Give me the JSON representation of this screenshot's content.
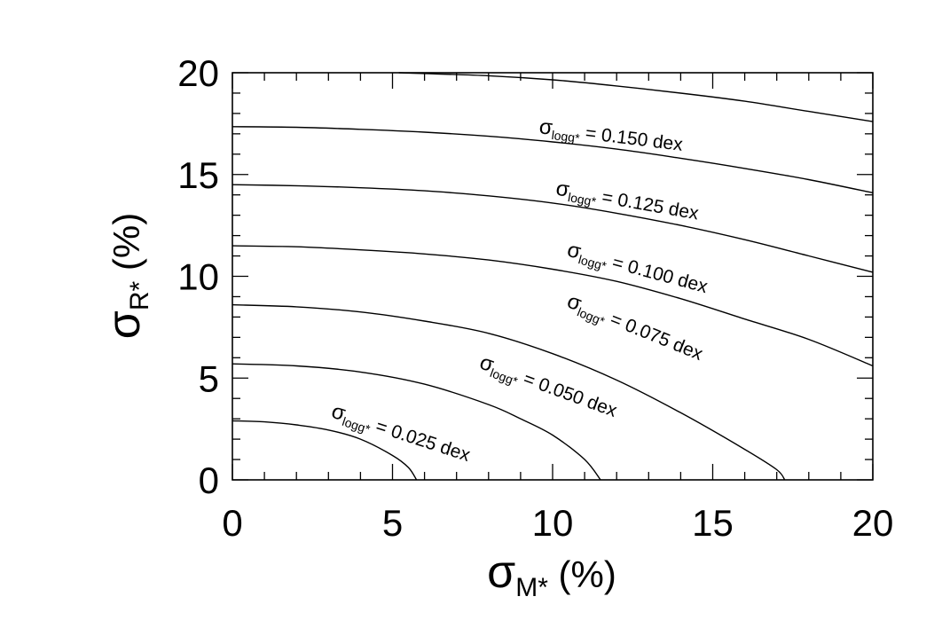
{
  "chart_data": {
    "type": "line",
    "title": "",
    "xlabel": {
      "symbol": "σ",
      "sub": "M*",
      "unit": "(%)"
    },
    "ylabel": {
      "symbol": "σ",
      "sub": "R*",
      "unit": "(%)"
    },
    "xlim": [
      0,
      20
    ],
    "ylim": [
      0,
      20
    ],
    "x_ticks": [
      "0",
      "5",
      "10",
      "15",
      "20"
    ],
    "y_ticks": [
      "0",
      "5",
      "10",
      "15",
      "20"
    ],
    "x_tick_values": [
      0,
      5,
      10,
      15,
      20
    ],
    "y_tick_values": [
      0,
      5,
      10,
      15,
      20
    ],
    "minor_step": 1,
    "grid": false,
    "legend": "none",
    "line_color": "#000000",
    "series": [
      {
        "label": {
          "symbol": "σ",
          "sub": "logg*",
          "text": "= 0.025 dex"
        },
        "logg_sigma": 0.025,
        "label_anchor": [
          5.2,
          2.0
        ],
        "label_angle": 18,
        "points": [
          [
            0,
            2.9
          ],
          [
            1,
            2.85
          ],
          [
            2,
            2.7
          ],
          [
            3,
            2.45
          ],
          [
            4,
            2.0
          ],
          [
            5,
            1.2
          ],
          [
            5.5,
            0.6
          ],
          [
            5.75,
            0
          ]
        ]
      },
      {
        "label": {
          "symbol": "σ",
          "sub": "logg*",
          "text": "= 0.050 dex"
        },
        "logg_sigma": 0.05,
        "label_anchor": [
          9.8,
          4.3
        ],
        "label_angle": 20,
        "points": [
          [
            0,
            5.7
          ],
          [
            2,
            5.6
          ],
          [
            4,
            5.3
          ],
          [
            6,
            4.7
          ],
          [
            8,
            3.7
          ],
          [
            9,
            3.0
          ],
          [
            10,
            2.2
          ],
          [
            11,
            1.0
          ],
          [
            11.5,
            0
          ]
        ]
      },
      {
        "label": {
          "symbol": "σ",
          "sub": "logg*",
          "text": "= 0.075 dex"
        },
        "logg_sigma": 0.075,
        "label_anchor": [
          12.5,
          7.2
        ],
        "label_angle": 22,
        "points": [
          [
            0,
            8.6
          ],
          [
            2,
            8.5
          ],
          [
            4,
            8.25
          ],
          [
            6,
            7.8
          ],
          [
            8,
            7.2
          ],
          [
            10,
            6.2
          ],
          [
            12,
            4.9
          ],
          [
            14,
            3.3
          ],
          [
            16,
            1.5
          ],
          [
            17,
            0.5
          ],
          [
            17.25,
            0
          ]
        ]
      },
      {
        "label": {
          "symbol": "σ",
          "sub": "logg*",
          "text": "= 0.100 dex"
        },
        "logg_sigma": 0.1,
        "label_anchor": [
          12.6,
          10.1
        ],
        "label_angle": 15,
        "points": [
          [
            0,
            11.5
          ],
          [
            2,
            11.45
          ],
          [
            4,
            11.3
          ],
          [
            6,
            11.1
          ],
          [
            8,
            10.8
          ],
          [
            10,
            10.35
          ],
          [
            12,
            9.75
          ],
          [
            14,
            8.9
          ],
          [
            16,
            7.9
          ],
          [
            18,
            6.9
          ],
          [
            20,
            5.6
          ]
        ]
      },
      {
        "label": {
          "symbol": "σ",
          "sub": "logg*",
          "text": "= 0.125 dex"
        },
        "logg_sigma": 0.125,
        "label_anchor": [
          12.3,
          13.4
        ],
        "label_angle": 10,
        "points": [
          [
            0,
            14.5
          ],
          [
            2,
            14.45
          ],
          [
            4,
            14.35
          ],
          [
            6,
            14.2
          ],
          [
            8,
            13.95
          ],
          [
            10,
            13.6
          ],
          [
            12,
            13.1
          ],
          [
            14,
            12.5
          ],
          [
            16,
            11.8
          ],
          [
            18,
            11.0
          ],
          [
            20,
            10.2
          ]
        ]
      },
      {
        "label": {
          "symbol": "σ",
          "sub": "logg*",
          "text": "= 0.150 dex"
        },
        "logg_sigma": 0.15,
        "label_anchor": [
          11.8,
          16.6
        ],
        "label_angle": 7,
        "points": [
          [
            0,
            17.35
          ],
          [
            2,
            17.32
          ],
          [
            4,
            17.22
          ],
          [
            6,
            17.08
          ],
          [
            8,
            16.88
          ],
          [
            10,
            16.6
          ],
          [
            12,
            16.25
          ],
          [
            14,
            15.8
          ],
          [
            16,
            15.3
          ],
          [
            18,
            14.75
          ],
          [
            20,
            14.1
          ]
        ]
      },
      {
        "label": null,
        "logg_sigma": 0.175,
        "points": [
          [
            5.2,
            20
          ],
          [
            8,
            19.85
          ],
          [
            10,
            19.65
          ],
          [
            12,
            19.35
          ],
          [
            14,
            19.0
          ],
          [
            16,
            18.6
          ],
          [
            18,
            18.1
          ],
          [
            20,
            17.6
          ]
        ]
      }
    ]
  }
}
